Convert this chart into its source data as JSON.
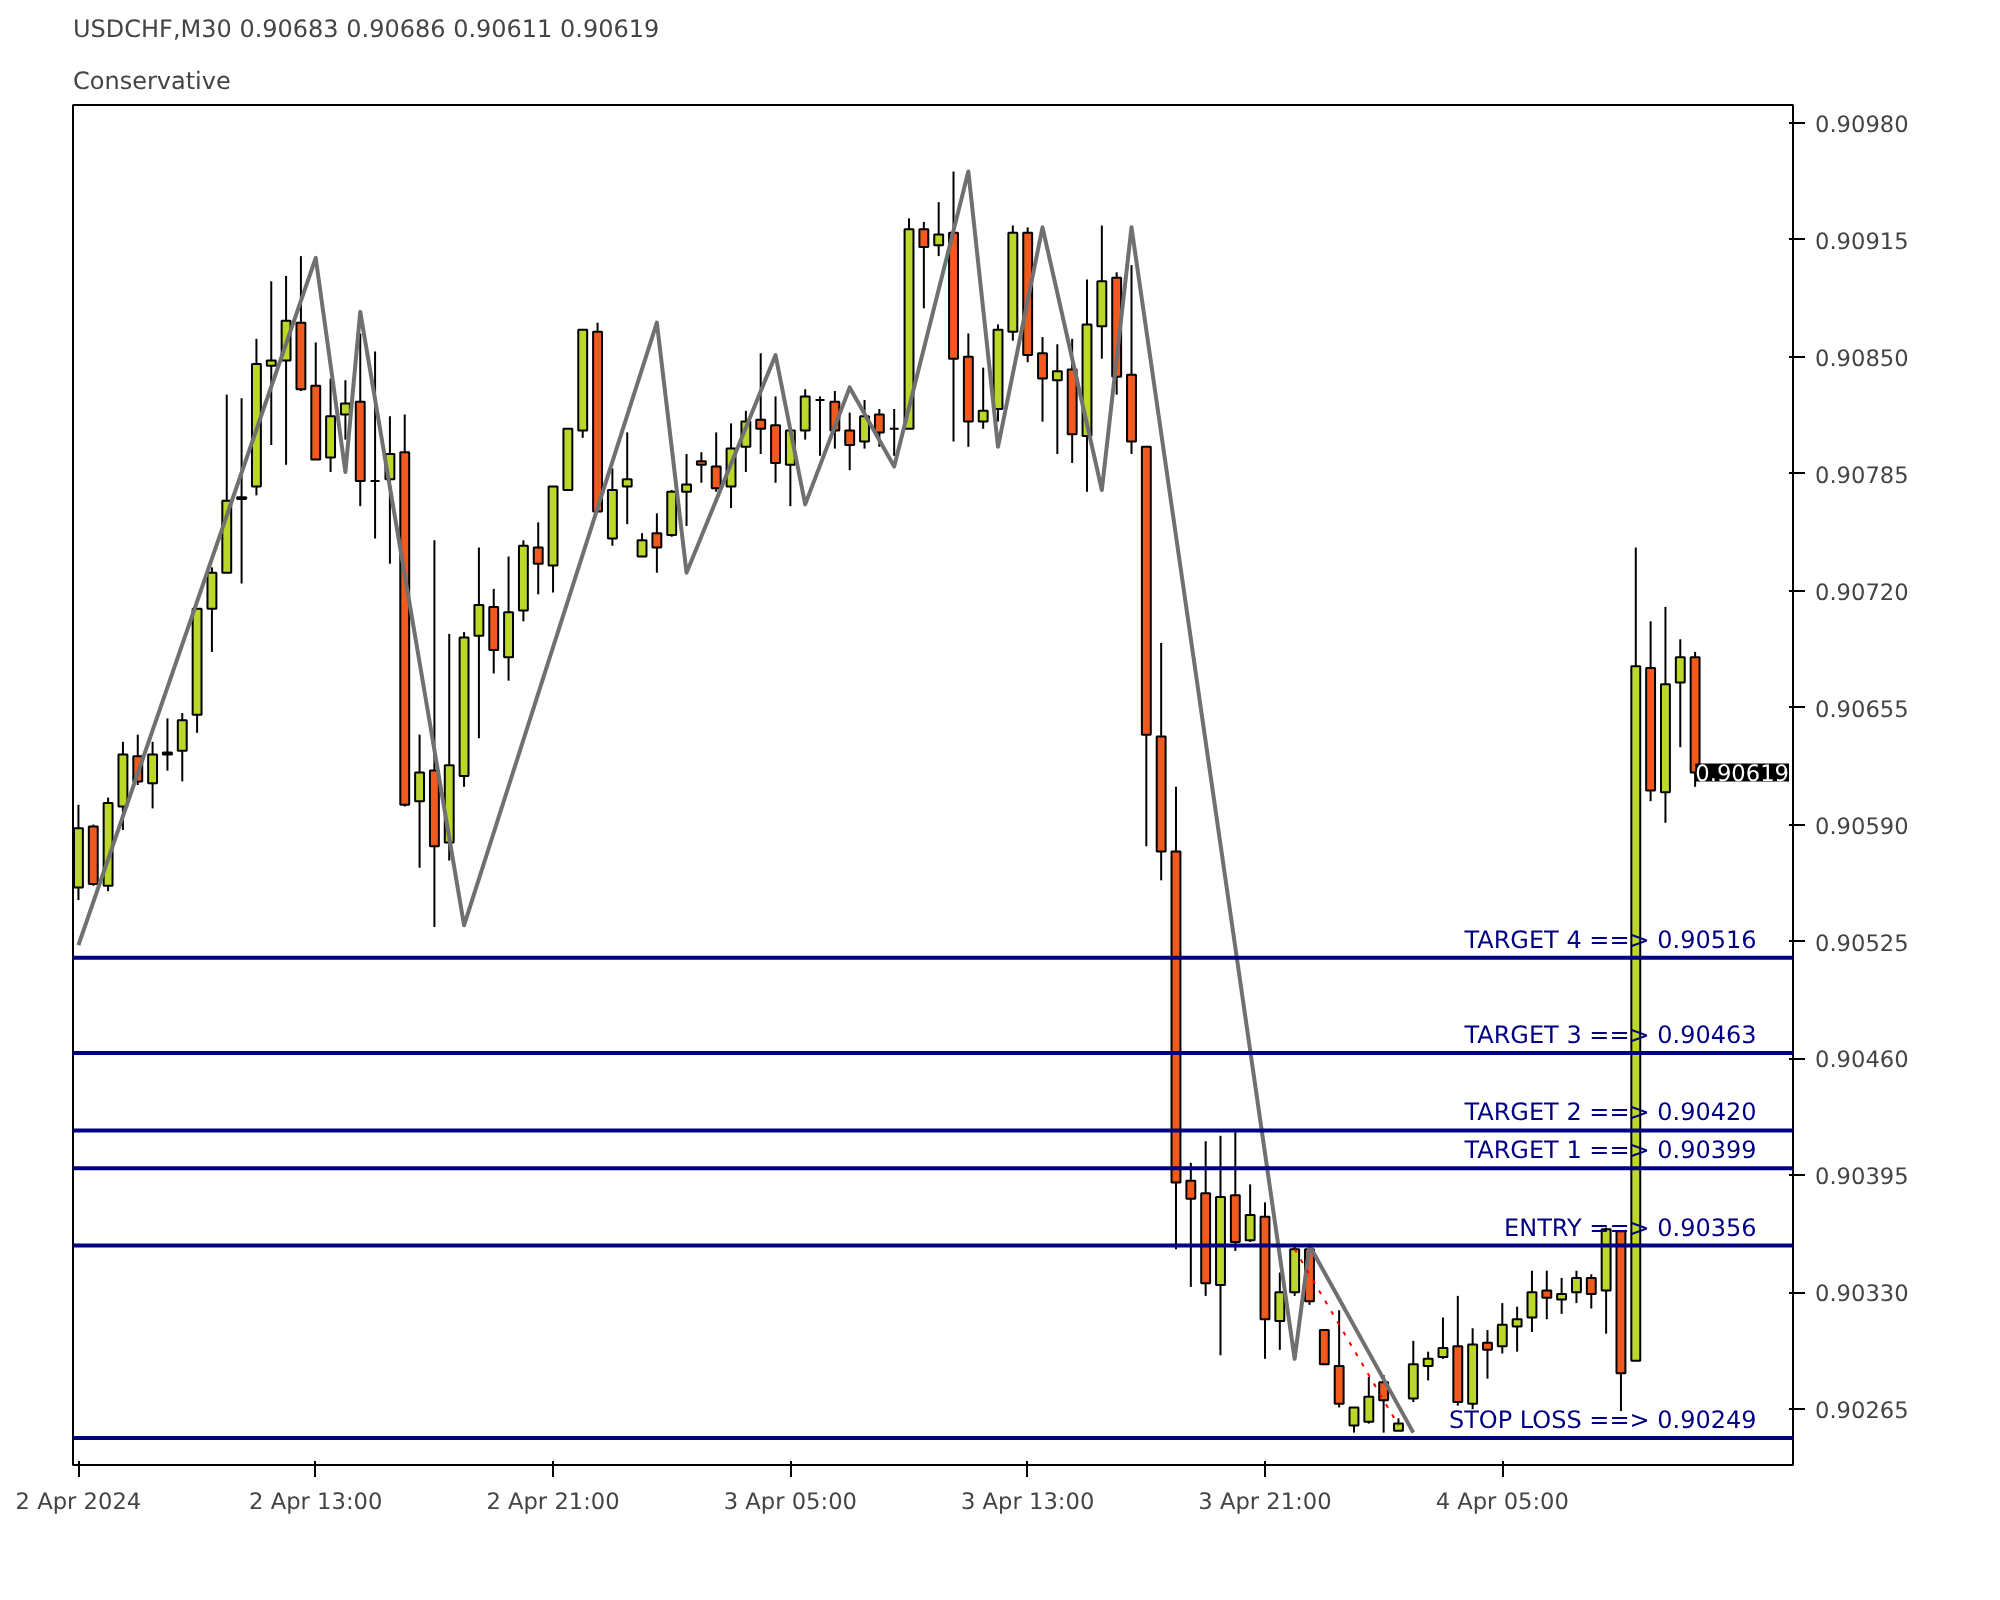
{
  "chart_data": {
    "type": "candlestick",
    "title": "USDCHF,M30  0.90683 0.90686 0.90611 0.90619",
    "subtitle": "Conservative",
    "colors": [
      "#bcd62a",
      "#f05a1e",
      "#bcd62a",
      "#bcd62a",
      "#f05a1e",
      "#bcd62a",
      "#bcd62a",
      "#bcd62a",
      "#bcd62a",
      "#bcd62a",
      "#bcd62a",
      "#f05a1e",
      "#bcd62a",
      "#bcd62a",
      "#bcd62a",
      "#f05a1e",
      "#f05a1e",
      "#bcd62a",
      "#bcd62a",
      "#f05a1e",
      "#000000",
      "#bcd62a",
      "#f05a1e",
      "#bcd62a",
      "#f05a1e",
      "#bcd62a",
      "#bcd62a",
      "#bcd62a",
      "#f05a1e",
      "#bcd62a",
      "#bcd62a",
      "#f05a1e",
      "#bcd62a",
      "#bcd62a",
      "#bcd62a",
      "#f05a1e",
      "#bcd62a",
      "#bcd62a",
      "#bcd62a",
      "#f05a1e",
      "#bcd62a",
      "#bcd62a",
      "#f05a1e",
      "#f05a1e",
      "#bcd62a",
      "#bcd62a",
      "#f05a1e",
      "#f05a1e",
      "#bcd62a",
      "#bcd62a",
      "#000000",
      "#f05a1e",
      "#f05a1e",
      "#bcd62a",
      "#f05a1e",
      "#000000",
      "#bcd62a",
      "#f05a1e",
      "#bcd62a",
      "#f05a1e",
      "#f05a1e",
      "#bcd62a",
      "#bcd62a",
      "#bcd62a",
      "#f05a1e",
      "#f05a1e",
      "#bcd62a",
      "#f05a1e",
      "#bcd62a",
      "#bcd62a",
      "#f05a1e",
      "#f05a1e",
      "#f05a1e",
      "#f05a1e",
      "#f05a1e",
      "#f05a1e",
      "#f05a1e",
      "#bcd62a",
      "#f05a1e",
      "#bcd62a",
      "#f05a1e",
      "#bcd62a",
      "#bcd62a",
      "#f05a1e",
      "#f05a1e",
      "#f05a1e",
      "#bcd62a",
      "#bcd62a",
      "#f05a1e",
      "#bcd62a",
      "#bcd62a",
      "#bcd62a",
      "#bcd62a",
      "#f05a1e",
      "#bcd62a",
      "#f05a1e",
      "#bcd62a",
      "#bcd62a",
      "#bcd62a",
      "#f05a1e",
      "#bcd62a",
      "#bcd62a",
      "#f05a1e",
      "#bcd62a",
      "#f05a1e",
      "#bcd62a",
      "#f05a1e",
      "#bcd62a",
      "#bcd62a",
      "#f05a1e"
    ],
    "x": [
      "2024-04-02T05:00",
      "2024-04-02T05:30",
      "2024-04-02T06:00",
      "2024-04-02T06:30",
      "2024-04-02T07:00",
      "2024-04-02T07:30",
      "2024-04-02T08:00",
      "2024-04-02T08:30",
      "2024-04-02T09:00",
      "2024-04-02T09:30",
      "2024-04-02T10:00",
      "2024-04-02T10:30",
      "2024-04-02T11:00",
      "2024-04-02T11:30",
      "2024-04-02T12:00",
      "2024-04-02T12:30",
      "2024-04-02T13:00",
      "2024-04-02T13:30",
      "2024-04-02T14:00",
      "2024-04-02T14:30",
      "2024-04-02T15:00",
      "2024-04-02T15:30",
      "2024-04-02T16:00",
      "2024-04-02T16:30",
      "2024-04-02T17:00",
      "2024-04-02T17:30",
      "2024-04-02T18:00",
      "2024-04-02T18:30",
      "2024-04-02T19:00",
      "2024-04-02T19:30",
      "2024-04-02T20:00",
      "2024-04-02T20:30",
      "2024-04-02T21:00",
      "2024-04-02T21:30",
      "2024-04-02T22:00",
      "2024-04-02T22:30",
      "2024-04-02T23:00",
      "2024-04-02T23:30",
      "2024-04-03T00:00",
      "2024-04-03T00:30",
      "2024-04-03T01:00",
      "2024-04-03T01:30",
      "2024-04-03T02:00",
      "2024-04-03T02:30",
      "2024-04-03T03:00",
      "2024-04-03T03:30",
      "2024-04-03T04:00",
      "2024-04-03T04:30",
      "2024-04-03T05:00",
      "2024-04-03T05:30",
      "2024-04-03T06:00",
      "2024-04-03T06:30",
      "2024-04-03T07:00",
      "2024-04-03T07:30",
      "2024-04-03T08:00",
      "2024-04-03T08:30",
      "2024-04-03T09:00",
      "2024-04-03T09:30",
      "2024-04-03T10:00",
      "2024-04-03T10:30",
      "2024-04-03T11:00",
      "2024-04-03T11:30",
      "2024-04-03T12:00",
      "2024-04-03T12:30",
      "2024-04-03T13:00",
      "2024-04-03T13:30",
      "2024-04-03T14:00",
      "2024-04-03T14:30",
      "2024-04-03T15:00",
      "2024-04-03T15:30",
      "2024-04-03T16:00",
      "2024-04-03T16:30",
      "2024-04-03T17:00",
      "2024-04-03T17:30",
      "2024-04-03T18:00",
      "2024-04-03T18:30",
      "2024-04-03T19:00",
      "2024-04-03T19:30",
      "2024-04-03T20:00",
      "2024-04-03T20:30",
      "2024-04-03T21:00",
      "2024-04-03T21:30",
      "2024-04-03T22:00",
      "2024-04-03T22:30",
      "2024-04-03T23:00",
      "2024-04-03T23:30",
      "2024-04-04T00:00",
      "2024-04-04T00:30",
      "2024-04-04T01:00",
      "2024-04-04T01:30",
      "2024-04-04T02:00",
      "2024-04-04T02:30",
      "2024-04-04T03:00",
      "2024-04-04T03:30",
      "2024-04-04T04:00",
      "2024-04-04T04:30",
      "2024-04-04T05:00",
      "2024-04-04T05:30",
      "2024-04-04T06:00",
      "2024-04-04T06:30",
      "2024-04-04T07:00",
      "2024-04-04T07:30",
      "2024-04-04T08:00",
      "2024-04-04T08:30",
      "2024-04-04T09:00",
      "2024-04-04T09:30",
      "2024-04-04T10:00",
      "2024-04-04T10:30",
      "2024-04-04T11:00",
      "2024-04-04T11:30"
    ],
    "ohlc": [
      [
        0.90555,
        0.90601,
        0.90548,
        0.90588
      ],
      [
        0.90589,
        0.9059,
        0.90556,
        0.90557
      ],
      [
        0.90556,
        0.90605,
        0.90553,
        0.90602
      ],
      [
        0.906,
        0.90636,
        0.90587,
        0.90629
      ],
      [
        0.90628,
        0.9064,
        0.90612,
        0.90614
      ],
      [
        0.90613,
        0.90636,
        0.90599,
        0.90629
      ],
      [
        0.90629,
        0.90649,
        0.9062,
        0.9063
      ],
      [
        0.90631,
        0.90652,
        0.90614,
        0.90648
      ],
      [
        0.90651,
        0.9071,
        0.90641,
        0.9071
      ],
      [
        0.9071,
        0.90733,
        0.90686,
        0.9073
      ],
      [
        0.9073,
        0.90829,
        0.9073,
        0.9077
      ],
      [
        0.90772,
        0.90827,
        0.90724,
        0.90771
      ],
      [
        0.90778,
        0.9086,
        0.90773,
        0.90846
      ],
      [
        0.90845,
        0.90892,
        0.90801,
        0.90848
      ],
      [
        0.90848,
        0.90895,
        0.9079,
        0.9087
      ],
      [
        0.90869,
        0.90906,
        0.90831,
        0.90832
      ],
      [
        0.90834,
        0.90858,
        0.90793,
        0.90793
      ],
      [
        0.90794,
        0.90838,
        0.90786,
        0.90817
      ],
      [
        0.90818,
        0.90837,
        0.90804,
        0.90824
      ],
      [
        0.90825,
        0.90863,
        0.90767,
        0.90781
      ],
      [
        0.90781,
        0.90853,
        0.90749,
        0.90781
      ],
      [
        0.90782,
        0.90817,
        0.90735,
        0.90796
      ],
      [
        0.90797,
        0.90818,
        0.906,
        0.90601
      ],
      [
        0.90603,
        0.9064,
        0.90566,
        0.90619
      ],
      [
        0.9062,
        0.90748,
        0.90533,
        0.90578
      ],
      [
        0.9058,
        0.90696,
        0.9057,
        0.90623
      ],
      [
        0.90617,
        0.90697,
        0.90611,
        0.90694
      ],
      [
        0.90695,
        0.90744,
        0.90638,
        0.90712
      ],
      [
        0.90711,
        0.90721,
        0.90674,
        0.90687
      ],
      [
        0.90683,
        0.90739,
        0.9067,
        0.90708
      ],
      [
        0.90709,
        0.90748,
        0.90703,
        0.90745
      ],
      [
        0.90744,
        0.90758,
        0.90718,
        0.90735
      ],
      [
        0.90734,
        0.90778,
        0.90719,
        0.90778
      ],
      [
        0.90776,
        0.9081,
        0.90776,
        0.9081
      ],
      [
        0.90809,
        0.90865,
        0.90805,
        0.90865
      ],
      [
        0.90864,
        0.90869,
        0.90764,
        0.90764
      ],
      [
        0.90749,
        0.90788,
        0.90745,
        0.90776
      ],
      [
        0.90778,
        0.90808,
        0.90757,
        0.90782
      ],
      [
        0.90739,
        0.90752,
        0.90739,
        0.90748
      ],
      [
        0.90752,
        0.90763,
        0.9073,
        0.90744
      ],
      [
        0.90751,
        0.90776,
        0.9075,
        0.90775
      ],
      [
        0.90775,
        0.90796,
        0.90756,
        0.90779
      ],
      [
        0.90792,
        0.90797,
        0.9078,
        0.9079
      ],
      [
        0.90789,
        0.90808,
        0.90775,
        0.90777
      ],
      [
        0.90778,
        0.90813,
        0.90766,
        0.90799
      ],
      [
        0.908,
        0.9082,
        0.90786,
        0.90814
      ],
      [
        0.90815,
        0.90852,
        0.90796,
        0.9081
      ],
      [
        0.90812,
        0.90828,
        0.9078,
        0.90791
      ],
      [
        0.9079,
        0.90809,
        0.90767,
        0.90809
      ],
      [
        0.90809,
        0.90832,
        0.90804,
        0.90828
      ],
      [
        0.90826,
        0.90828,
        0.90795,
        0.90826
      ],
      [
        0.90825,
        0.90831,
        0.90799,
        0.90809
      ],
      [
        0.90809,
        0.90819,
        0.90787,
        0.90801
      ],
      [
        0.90803,
        0.90826,
        0.90799,
        0.90817
      ],
      [
        0.90818,
        0.90821,
        0.908,
        0.90808
      ],
      [
        0.9081,
        0.90821,
        0.90795,
        0.9081
      ],
      [
        0.9081,
        0.90927,
        0.9081,
        0.90921
      ],
      [
        0.90921,
        0.90925,
        0.90877,
        0.90911
      ],
      [
        0.90912,
        0.90936,
        0.90906,
        0.90918
      ],
      [
        0.90919,
        0.90953,
        0.90803,
        0.90849
      ],
      [
        0.9085,
        0.90863,
        0.908,
        0.90814
      ],
      [
        0.90814,
        0.90844,
        0.9081,
        0.9082
      ],
      [
        0.90821,
        0.90868,
        0.90814,
        0.90865
      ],
      [
        0.90864,
        0.90923,
        0.90859,
        0.90919
      ],
      [
        0.90919,
        0.90922,
        0.90847,
        0.90851
      ],
      [
        0.90852,
        0.90861,
        0.90814,
        0.90838
      ],
      [
        0.90837,
        0.90857,
        0.90796,
        0.90842
      ],
      [
        0.90843,
        0.9086,
        0.90791,
        0.90807
      ],
      [
        0.90806,
        0.90893,
        0.90775,
        0.90868
      ],
      [
        0.90867,
        0.90923,
        0.90849,
        0.90892
      ],
      [
        0.90894,
        0.90897,
        0.90829,
        0.90839
      ],
      [
        0.9084,
        0.90901,
        0.90796,
        0.90803
      ],
      [
        0.908,
        0.908,
        0.90578,
        0.9064
      ],
      [
        0.90639,
        0.90691,
        0.90559,
        0.90575
      ],
      [
        0.90575,
        0.90611,
        0.90354,
        0.90391
      ],
      [
        0.90392,
        0.90402,
        0.90333,
        0.90382
      ],
      [
        0.90385,
        0.90414,
        0.90328,
        0.90335
      ],
      [
        0.90334,
        0.90417,
        0.90295,
        0.90383
      ],
      [
        0.90384,
        0.90419,
        0.90353,
        0.90358
      ],
      [
        0.90359,
        0.9039,
        0.90358,
        0.90373
      ],
      [
        0.90372,
        0.9038,
        0.90293,
        0.90315
      ],
      [
        0.90314,
        0.90341,
        0.90298,
        0.9033
      ],
      [
        0.9033,
        0.90356,
        0.90328,
        0.90354
      ],
      [
        0.90354,
        0.90356,
        0.90323,
        0.90325
      ],
      [
        0.90309,
        0.90309,
        0.9029,
        0.9029
      ],
      [
        0.90289,
        0.9032,
        0.90266,
        0.90268
      ],
      [
        0.90256,
        0.90266,
        0.90252,
        0.90266
      ],
      [
        0.90258,
        0.90283,
        0.90257,
        0.90272
      ],
      [
        0.9028,
        0.90284,
        0.90252,
        0.9027
      ],
      [
        0.90253,
        0.9026,
        0.90253,
        0.90257
      ],
      [
        0.90271,
        0.90303,
        0.90269,
        0.9029
      ],
      [
        0.90289,
        0.90297,
        0.90281,
        0.90293
      ],
      [
        0.90294,
        0.90316,
        0.90293,
        0.90299
      ],
      [
        0.903,
        0.90328,
        0.90267,
        0.90269
      ],
      [
        0.90268,
        0.9031,
        0.90265,
        0.90301
      ],
      [
        0.90302,
        0.90309,
        0.90282,
        0.90298
      ],
      [
        0.903,
        0.90324,
        0.90296,
        0.90312
      ],
      [
        0.90311,
        0.90322,
        0.90297,
        0.90315
      ],
      [
        0.90316,
        0.90342,
        0.90308,
        0.9033
      ],
      [
        0.90331,
        0.90342,
        0.90315,
        0.90327
      ],
      [
        0.90326,
        0.90338,
        0.90318,
        0.90329
      ],
      [
        0.9033,
        0.90342,
        0.90324,
        0.90338
      ],
      [
        0.90338,
        0.9034,
        0.90321,
        0.90329
      ],
      [
        0.90331,
        0.90366,
        0.90307,
        0.90365
      ],
      [
        0.90364,
        0.90364,
        0.90264,
        0.90285
      ],
      [
        0.90292,
        0.90744,
        0.90292,
        0.90678
      ],
      [
        0.90677,
        0.90703,
        0.90603,
        0.90609
      ],
      [
        0.90608,
        0.90711,
        0.90591,
        0.90668
      ],
      [
        0.90669,
        0.90693,
        0.90633,
        0.90683
      ],
      [
        0.90683,
        0.90686,
        0.90611,
        0.90619
      ]
    ],
    "series": [
      {
        "type": "line",
        "color": "#707070",
        "x": [
          "2024-04-02T05:00",
          "2024-04-02T13:00",
          "2024-04-02T14:00",
          "2024-04-02T14:30",
          "2024-04-02T18:00",
          "2024-04-03T00:30",
          "2024-04-03T01:30",
          "2024-04-03T04:30",
          "2024-04-03T05:30",
          "2024-04-03T07:00",
          "2024-04-03T08:30",
          "2024-04-03T11:00",
          "2024-04-03T12:00",
          "2024-04-03T13:30",
          "2024-04-03T15:30",
          "2024-04-03T16:30",
          "2024-04-03T22:00",
          "2024-04-03T22:30",
          "2024-04-04T02:00"
        ],
        "values": [
          0.90523,
          0.90905,
          0.90786,
          0.90875,
          0.90534,
          0.90869,
          0.9073,
          0.90851,
          0.90768,
          0.90833,
          0.90789,
          0.90953,
          0.908,
          0.90922,
          0.90776,
          0.90922,
          0.90293,
          0.90356,
          0.90252
        ]
      },
      {
        "type": "line",
        "color": "#ff0000",
        "line_style": "dotted",
        "x": [
          "2024-04-03T22:00",
          "2024-04-04T01:30"
        ],
        "values": [
          0.90354,
          0.90256
        ]
      }
    ],
    "ref_lines": [
      {
        "axis": "y",
        "value": 0.90516,
        "label": "TARGET 4    ==>  0.90516",
        "color": "#000080"
      },
      {
        "axis": "y",
        "value": 0.90463,
        "label": "TARGET 3    ==>  0.90463",
        "color": "#000080"
      },
      {
        "axis": "y",
        "value": 0.9042,
        "label": "TARGET 2    ==>  0.90420",
        "color": "#000080"
      },
      {
        "axis": "y",
        "value": 0.90399,
        "label": "TARGET 1    ==>  0.90399",
        "color": "#000080"
      },
      {
        "axis": "y",
        "value": 0.90356,
        "label": "ENTRY    ==>  0.90356",
        "color": "#000080"
      },
      {
        "axis": "y",
        "value": 0.90249,
        "label": "STOP LOSS    ==>  0.90249",
        "color": "#000080"
      }
    ],
    "annotations": [
      "0.90619"
    ],
    "xlim": [
      "2024-04-02T04:49",
      "2024-04-04T14:48"
    ],
    "xticks": [
      {
        "value": "2024-04-02T05:00",
        "label": "2 Apr 2024"
      },
      {
        "value": "2024-04-02T13:00",
        "label": "2 Apr 13:00"
      },
      {
        "value": "2024-04-02T21:00",
        "label": "2 Apr 21:00"
      },
      {
        "value": "2024-04-03T05:00",
        "label": "3 Apr 05:00"
      },
      {
        "value": "2024-04-03T13:00",
        "label": "3 Apr 13:00"
      },
      {
        "value": "2024-04-03T21:00",
        "label": "3 Apr 21:00"
      },
      {
        "value": "2024-04-04T05:00",
        "label": "4 Apr 05:00"
      }
    ],
    "ylim": [
      0.90234,
      0.9099
    ],
    "yticks": [
      {
        "value": 0.9098,
        "label": "0.90980"
      },
      {
        "value": 0.90915,
        "label": "0.90915"
      },
      {
        "value": 0.9085,
        "label": "0.90850"
      },
      {
        "value": 0.90785,
        "label": "0.90785"
      },
      {
        "value": 0.9072,
        "label": "0.90720"
      },
      {
        "value": 0.90655,
        "label": "0.90655"
      },
      {
        "value": 0.9059,
        "label": "0.90590"
      },
      {
        "value": 0.90525,
        "label": "0.90525"
      },
      {
        "value": 0.9046,
        "label": "0.90460"
      },
      {
        "value": 0.90395,
        "label": "0.90395"
      },
      {
        "value": 0.9033,
        "label": "0.90330"
      },
      {
        "value": 0.90265,
        "label": "0.90265"
      }
    ]
  }
}
